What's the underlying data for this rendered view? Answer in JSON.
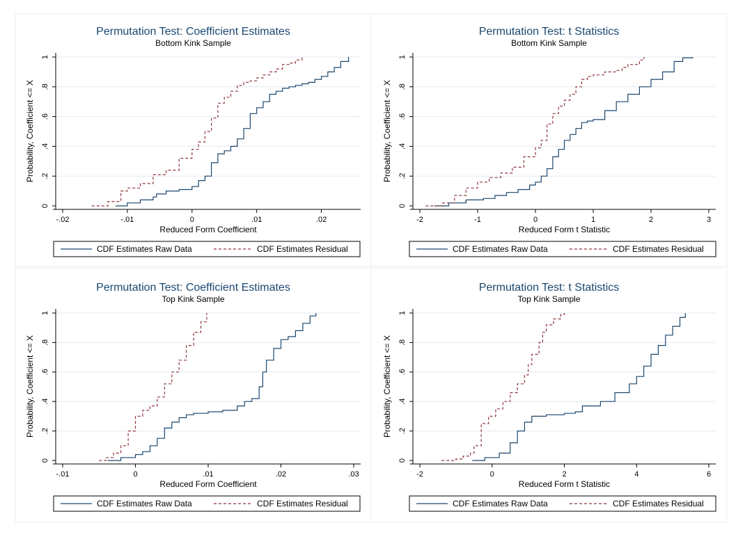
{
  "figure": {
    "background": "#ffffff",
    "panel_border": "#e8ecf2",
    "grid": "#e4eaf0"
  },
  "colors": {
    "raw": "#1a476f",
    "residual": "#90353b",
    "title": "#1a476f",
    "text": "#000000"
  },
  "chart_data": [
    {
      "type": "line",
      "title": "Permutation Test: Coefficient Estimates",
      "subtitle": "Bottom Kink Sample",
      "xlabel": "Reduced Form Coefficient",
      "ylabel": "Probability, Coefficient <= X",
      "xlim": [
        -0.02,
        0.025
      ],
      "ylim": [
        0,
        1
      ],
      "xticks": [
        -0.02,
        -0.01,
        0,
        0.01,
        0.02
      ],
      "xtick_labels": [
        "-.02",
        "-.01",
        "0",
        ".01",
        ".02"
      ],
      "yticks": [
        0,
        0.2,
        0.4,
        0.6,
        0.8,
        1
      ],
      "ytick_labels": [
        "0",
        ".2",
        ".4",
        ".6",
        ".8",
        "1"
      ],
      "grid": true,
      "legend": "bottom",
      "series": [
        {
          "name": "CDF Estimates Raw Data",
          "style": "solid",
          "x": [
            -0.0118,
            -0.01,
            -0.008,
            -0.006,
            -0.0055,
            -0.004,
            -0.002,
            0,
            0.001,
            0.002,
            0.003,
            0.004,
            0.005,
            0.006,
            0.007,
            0.008,
            0.009,
            0.01,
            0.011,
            0.012,
            0.013,
            0.014,
            0.015,
            0.016,
            0.017,
            0.018,
            0.019,
            0.02,
            0.021,
            0.022,
            0.023,
            0.0242
          ],
          "y": [
            0,
            0.02,
            0.04,
            0.06,
            0.08,
            0.1,
            0.11,
            0.13,
            0.17,
            0.2,
            0.29,
            0.35,
            0.37,
            0.4,
            0.45,
            0.52,
            0.62,
            0.66,
            0.7,
            0.75,
            0.77,
            0.79,
            0.8,
            0.81,
            0.82,
            0.83,
            0.85,
            0.87,
            0.9,
            0.93,
            0.97,
            1.0
          ]
        },
        {
          "name": "CDF Estimates Residual",
          "style": "dash",
          "x": [
            -0.0155,
            -0.013,
            -0.011,
            -0.01,
            -0.008,
            -0.006,
            -0.004,
            -0.002,
            0,
            0.001,
            0.002,
            0.003,
            0.004,
            0.005,
            0.006,
            0.007,
            0.008,
            0.009,
            0.01,
            0.011,
            0.012,
            0.013,
            0.014,
            0.015,
            0.016,
            0.017
          ],
          "y": [
            0,
            0.03,
            0.1,
            0.12,
            0.15,
            0.21,
            0.24,
            0.32,
            0.38,
            0.43,
            0.5,
            0.59,
            0.69,
            0.73,
            0.77,
            0.81,
            0.83,
            0.84,
            0.86,
            0.88,
            0.9,
            0.92,
            0.95,
            0.96,
            0.98,
            1.0
          ]
        }
      ]
    },
    {
      "type": "line",
      "title": "Permutation Test: t  Statistics",
      "subtitle": "Bottom Kink Sample",
      "xlabel": "Reduced Form t Statistic",
      "ylabel": "Probability, Coefficient <= X",
      "xlim": [
        -2,
        3
      ],
      "ylim": [
        0,
        1
      ],
      "xticks": [
        -2,
        -1,
        0,
        1,
        2,
        3
      ],
      "xtick_labels": [
        "-2",
        "-1",
        "0",
        "1",
        "2",
        "3"
      ],
      "yticks": [
        0,
        0.2,
        0.4,
        0.6,
        0.8,
        1
      ],
      "ytick_labels": [
        "0",
        ".2",
        ".4",
        ".6",
        ".8",
        "1"
      ],
      "grid": true,
      "legend": "bottom",
      "series": [
        {
          "name": "CDF Estimates Raw Data",
          "style": "solid",
          "x": [
            -1.75,
            -1.5,
            -1.2,
            -0.9,
            -0.7,
            -0.5,
            -0.3,
            -0.1,
            0,
            0.1,
            0.2,
            0.3,
            0.4,
            0.5,
            0.6,
            0.7,
            0.8,
            0.9,
            1.0,
            1.2,
            1.4,
            1.6,
            1.8,
            2.0,
            2.2,
            2.4,
            2.55,
            2.72
          ],
          "y": [
            0,
            0.02,
            0.04,
            0.05,
            0.07,
            0.09,
            0.11,
            0.14,
            0.16,
            0.2,
            0.25,
            0.33,
            0.38,
            0.44,
            0.48,
            0.52,
            0.56,
            0.57,
            0.58,
            0.64,
            0.7,
            0.75,
            0.8,
            0.85,
            0.9,
            0.97,
            0.995,
            1.0
          ]
        },
        {
          "name": "CDF Estimates Residual",
          "style": "dash",
          "x": [
            -1.9,
            -1.6,
            -1.4,
            -1.2,
            -1.0,
            -0.8,
            -0.6,
            -0.4,
            -0.2,
            0,
            0.1,
            0.2,
            0.3,
            0.4,
            0.5,
            0.6,
            0.7,
            0.8,
            0.9,
            1.0,
            1.2,
            1.4,
            1.5,
            1.6,
            1.8,
            1.88
          ],
          "y": [
            0,
            0.02,
            0.07,
            0.12,
            0.16,
            0.19,
            0.22,
            0.26,
            0.33,
            0.39,
            0.44,
            0.55,
            0.62,
            0.67,
            0.71,
            0.75,
            0.8,
            0.85,
            0.87,
            0.88,
            0.9,
            0.91,
            0.93,
            0.95,
            0.98,
            1.0
          ]
        }
      ]
    },
    {
      "type": "line",
      "title": "Permutation Test: Coefficient Estimates",
      "subtitle": "Top Kink Sample",
      "xlabel": "Reduced Form Coefficient",
      "ylabel": "Probability, Coefficient <= X",
      "xlim": [
        -0.01,
        0.03
      ],
      "ylim": [
        0,
        1
      ],
      "xticks": [
        -0.01,
        0,
        0.01,
        0.02,
        0.03
      ],
      "xtick_labels": [
        "-.01",
        "0",
        ".01",
        ".02",
        ".03"
      ],
      "yticks": [
        0,
        0.2,
        0.4,
        0.6,
        0.8,
        1
      ],
      "ytick_labels": [
        "0",
        ".2",
        ".4",
        ".6",
        ".8",
        "1"
      ],
      "grid": true,
      "legend": "bottom",
      "series": [
        {
          "name": "CDF Estimates Raw Data",
          "style": "solid",
          "x": [
            -0.0038,
            -0.002,
            0,
            0.001,
            0.002,
            0.003,
            0.004,
            0.005,
            0.006,
            0.007,
            0.008,
            0.01,
            0.012,
            0.014,
            0.015,
            0.016,
            0.017,
            0.0175,
            0.018,
            0.019,
            0.02,
            0.021,
            0.022,
            0.023,
            0.024,
            0.0248
          ],
          "y": [
            0,
            0.02,
            0.04,
            0.06,
            0.1,
            0.15,
            0.22,
            0.26,
            0.29,
            0.31,
            0.32,
            0.33,
            0.34,
            0.37,
            0.4,
            0.42,
            0.5,
            0.6,
            0.68,
            0.76,
            0.82,
            0.84,
            0.88,
            0.93,
            0.98,
            1.0
          ]
        },
        {
          "name": "CDF Estimates Residual",
          "style": "dash",
          "x": [
            -0.005,
            -0.004,
            -0.003,
            -0.002,
            -0.001,
            0,
            0.001,
            0.002,
            0.003,
            0.004,
            0.005,
            0.006,
            0.007,
            0.008,
            0.009,
            0.0098
          ],
          "y": [
            0,
            0.02,
            0.05,
            0.1,
            0.2,
            0.3,
            0.34,
            0.37,
            0.43,
            0.52,
            0.6,
            0.68,
            0.78,
            0.87,
            0.94,
            1.0
          ]
        }
      ]
    },
    {
      "type": "line",
      "title": "Permutation Test: t  Statistics",
      "subtitle": "Top Kink Sample",
      "xlabel": "Reduced Form t Statistic",
      "ylabel": "Probability, Coefficient <= X",
      "xlim": [
        -2,
        6
      ],
      "ylim": [
        0,
        1
      ],
      "xticks": [
        -2,
        0,
        2,
        4,
        6
      ],
      "xtick_labels": [
        "-2",
        "0",
        "2",
        "4",
        "6"
      ],
      "yticks": [
        0,
        0.2,
        0.4,
        0.6,
        0.8,
        1
      ],
      "ytick_labels": [
        "0",
        ".2",
        ".4",
        ".6",
        ".8",
        "1"
      ],
      "grid": true,
      "legend": "bottom",
      "series": [
        {
          "name": "CDF Estimates Raw Data",
          "style": "solid",
          "x": [
            -0.55,
            -0.2,
            0.2,
            0.5,
            0.7,
            0.9,
            1.1,
            1.5,
            2.0,
            2.3,
            2.5,
            3.0,
            3.4,
            3.8,
            4.0,
            4.2,
            4.4,
            4.6,
            4.8,
            5.0,
            5.2,
            5.35
          ],
          "y": [
            0,
            0.02,
            0.05,
            0.12,
            0.2,
            0.26,
            0.3,
            0.31,
            0.32,
            0.33,
            0.37,
            0.4,
            0.46,
            0.52,
            0.57,
            0.64,
            0.72,
            0.78,
            0.85,
            0.91,
            0.97,
            1.0
          ]
        },
        {
          "name": "CDF Estimates Residual",
          "style": "dash",
          "x": [
            -1.4,
            -1.0,
            -0.8,
            -0.6,
            -0.5,
            -0.3,
            -0.1,
            0.1,
            0.3,
            0.5,
            0.7,
            0.9,
            1.0,
            1.1,
            1.3,
            1.4,
            1.5,
            1.7,
            1.9,
            2.0
          ],
          "y": [
            0,
            0.01,
            0.03,
            0.05,
            0.1,
            0.25,
            0.3,
            0.35,
            0.4,
            0.46,
            0.52,
            0.58,
            0.65,
            0.72,
            0.8,
            0.87,
            0.92,
            0.96,
            0.99,
            1.0
          ]
        }
      ]
    }
  ]
}
